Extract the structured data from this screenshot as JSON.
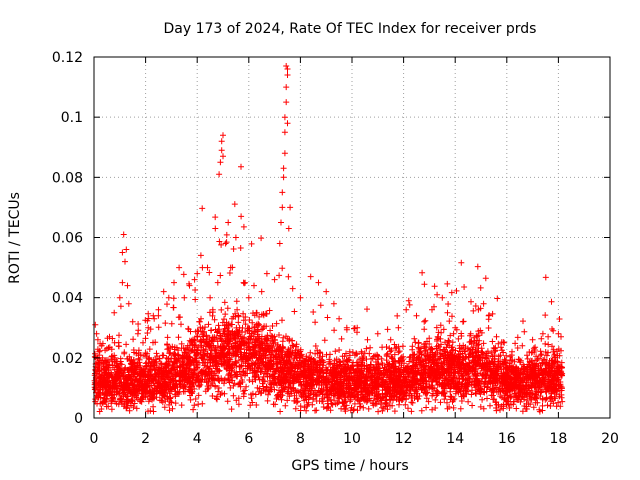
{
  "chart_data": {
    "type": "scatter",
    "title": "Day 173 of 2024, Rate Of TEC Index for receiver prds",
    "xlabel": "GPS time / hours",
    "ylabel": "ROTI / TECUs",
    "xlim": [
      0,
      20
    ],
    "ylim": [
      0,
      0.12
    ],
    "x_ticks": [
      0,
      2,
      4,
      6,
      8,
      10,
      12,
      14,
      16,
      18,
      20
    ],
    "x_tick_labels": [
      "0",
      "2",
      "4",
      "6",
      "8",
      "10",
      "12",
      "14",
      "16",
      "18",
      "20"
    ],
    "y_ticks": [
      0,
      0.02,
      0.04,
      0.06,
      0.08,
      0.1,
      0.12
    ],
    "y_tick_labels": [
      "0",
      "0.02",
      "0.04",
      "0.06",
      "0.08",
      "0.1",
      "0.12"
    ],
    "grid": true,
    "marker": "+",
    "color": "#ff0000",
    "series": [
      {
        "name": "ROTI",
        "points": [
          [
            0.05,
            0.031
          ],
          [
            0.1,
            0.028
          ],
          [
            0.15,
            0.026
          ],
          [
            0.2,
            0.022
          ],
          [
            0.3,
            0.024
          ],
          [
            0.5,
            0.023
          ],
          [
            0.6,
            0.027
          ],
          [
            0.8,
            0.025
          ],
          [
            1.0,
            0.04
          ],
          [
            1.1,
            0.045
          ],
          [
            1.1,
            0.055
          ],
          [
            1.15,
            0.061
          ],
          [
            1.2,
            0.052
          ],
          [
            1.25,
            0.056
          ],
          [
            1.3,
            0.044
          ],
          [
            1.35,
            0.038
          ],
          [
            1.5,
            0.032
          ],
          [
            1.7,
            0.028
          ],
          [
            1.9,
            0.025
          ],
          [
            2.1,
            0.03
          ],
          [
            2.3,
            0.034
          ],
          [
            2.5,
            0.036
          ],
          [
            2.7,
            0.042
          ],
          [
            2.9,
            0.04
          ],
          [
            3.1,
            0.045
          ],
          [
            3.3,
            0.05
          ],
          [
            3.5,
            0.04
          ],
          [
            3.7,
            0.044
          ],
          [
            3.9,
            0.046
          ],
          [
            4.0,
            0.048
          ],
          [
            4.2,
            0.05
          ],
          [
            4.5,
            0.04
          ],
          [
            4.7,
            0.063
          ],
          [
            4.8,
            0.045
          ],
          [
            4.85,
            0.081
          ],
          [
            4.9,
            0.085
          ],
          [
            4.95,
            0.089
          ],
          [
            4.95,
            0.092
          ],
          [
            5.0,
            0.094
          ],
          [
            5.0,
            0.087
          ],
          [
            5.1,
            0.058
          ],
          [
            5.2,
            0.065
          ],
          [
            5.3,
            0.05
          ],
          [
            5.5,
            0.06
          ],
          [
            5.7,
            0.067
          ],
          [
            5.8,
            0.045
          ],
          [
            6.0,
            0.04
          ],
          [
            6.2,
            0.044
          ],
          [
            6.5,
            0.042
          ],
          [
            6.7,
            0.048
          ],
          [
            7.0,
            0.046
          ],
          [
            7.2,
            0.058
          ],
          [
            7.25,
            0.065
          ],
          [
            7.3,
            0.07
          ],
          [
            7.3,
            0.075
          ],
          [
            7.35,
            0.08
          ],
          [
            7.35,
            0.083
          ],
          [
            7.4,
            0.088
          ],
          [
            7.4,
            0.095
          ],
          [
            7.4,
            0.1
          ],
          [
            7.45,
            0.105
          ],
          [
            7.45,
            0.11
          ],
          [
            7.5,
            0.114
          ],
          [
            7.5,
            0.116
          ],
          [
            7.45,
            0.117
          ],
          [
            7.5,
            0.098
          ],
          [
            7.55,
            0.063
          ],
          [
            7.6,
            0.07
          ],
          [
            7.7,
            0.043
          ],
          [
            8.0,
            0.04
          ],
          [
            8.4,
            0.047
          ],
          [
            8.7,
            0.045
          ],
          [
            9.0,
            0.042
          ],
          [
            9.3,
            0.038
          ],
          [
            9.5,
            0.033
          ],
          [
            9.8,
            0.03
          ],
          [
            10.2,
            0.03
          ],
          [
            10.6,
            0.026
          ],
          [
            11.0,
            0.028
          ],
          [
            11.5,
            0.026
          ],
          [
            11.8,
            0.03
          ],
          [
            12.1,
            0.036
          ],
          [
            12.2,
            0.039
          ],
          [
            12.5,
            0.034
          ],
          [
            12.8,
            0.032
          ],
          [
            13.1,
            0.036
          ],
          [
            13.3,
            0.041
          ],
          [
            13.5,
            0.04
          ],
          [
            13.7,
            0.035
          ],
          [
            14.0,
            0.03
          ],
          [
            14.3,
            0.032
          ],
          [
            14.6,
            0.028
          ],
          [
            14.9,
            0.036
          ],
          [
            15.1,
            0.038
          ],
          [
            15.3,
            0.034
          ],
          [
            15.6,
            0.027
          ],
          [
            15.9,
            0.025
          ],
          [
            16.2,
            0.022
          ],
          [
            16.6,
            0.024
          ],
          [
            17.0,
            0.026
          ],
          [
            17.4,
            0.028
          ],
          [
            17.6,
            0.027
          ],
          [
            17.8,
            0.029
          ],
          [
            18.0,
            0.028
          ],
          [
            18.1,
            0.027
          ]
        ]
      }
    ]
  }
}
